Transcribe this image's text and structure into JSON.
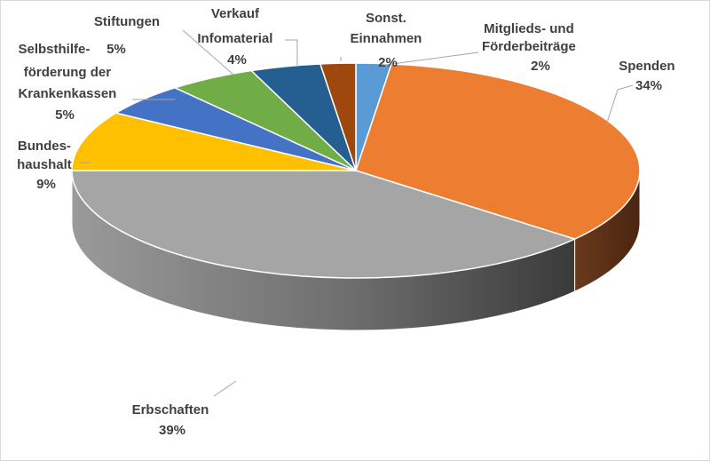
{
  "chart_data": {
    "type": "pie",
    "style": "3d-pie",
    "title": "",
    "slices": [
      {
        "label": "Mitglieds- und Förderbeiträge",
        "value": 2,
        "display": "2%",
        "color": "#5b9bd5"
      },
      {
        "label": "Spenden",
        "value": 34,
        "display": "34%",
        "color": "#ed7d31"
      },
      {
        "label": "Erbschaften",
        "value": 39,
        "display": "39%",
        "color": "#a5a5a5"
      },
      {
        "label": "Bundeshaushalt",
        "value": 9,
        "display": "9%",
        "color": "#ffc000"
      },
      {
        "label": "Selbsthilfeförderung der Krankenkassen",
        "value": 5,
        "display": "5%",
        "color": "#4472c4"
      },
      {
        "label": "Stiftungen",
        "value": 5,
        "display": "5%",
        "color": "#70ad47"
      },
      {
        "label": "Verkauf Infomaterial",
        "value": 4,
        "display": "4%",
        "color": "#255e91"
      },
      {
        "label": "Sonst. Einnahmen",
        "value": 2,
        "display": "2%",
        "color": "#9e480e"
      }
    ],
    "label_text": {
      "mitglied": [
        "Mitglieds- und",
        "Förderbeiträge",
        "2%"
      ],
      "spenden": [
        "Spenden",
        "34%"
      ],
      "erbschaften": [
        "Erbschaften",
        "39%"
      ],
      "bundes": [
        "Bundes-",
        "haushalt",
        "9%"
      ],
      "selbsthilfe": [
        "Selbsthilfe-",
        "förderung der",
        "Krankenkassen",
        "5%"
      ],
      "stiftungen": [
        "Stiftungen",
        "5%"
      ],
      "verkauf": [
        "Verkauf",
        "Infomaterial",
        "4%"
      ],
      "sonst": [
        "Sonst.",
        "Einnahmen",
        "2%"
      ]
    }
  }
}
